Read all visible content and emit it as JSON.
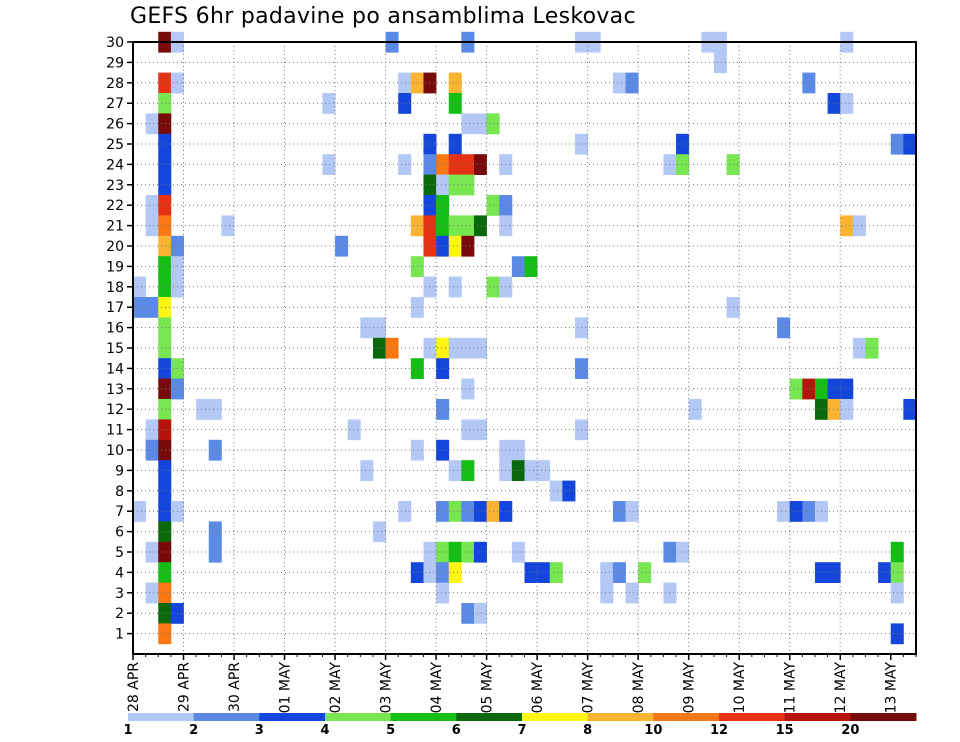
{
  "chart_data": {
    "type": "heatmap",
    "title": "GEFS 6hr padavine po ansamblima Leskovac",
    "xlabel": "",
    "ylabel": "",
    "x_tick_labels": [
      "28 APR",
      "29 APR",
      "30 APR",
      "01 MAY",
      "02 MAY",
      "03 MAY",
      "04 MAY",
      "05 MAY",
      "06 MAY",
      "07 MAY",
      "08 MAY",
      "09 MAY",
      "10 MAY",
      "11 MAY",
      "12 MAY",
      "13 MAY"
    ],
    "x_range_steps": [
      0,
      61
    ],
    "y_tick_labels": [
      "1",
      "2",
      "3",
      "4",
      "5",
      "6",
      "7",
      "8",
      "9",
      "10",
      "11",
      "12",
      "13",
      "14",
      "15",
      "16",
      "17",
      "18",
      "19",
      "20",
      "21",
      "22",
      "23",
      "24",
      "25",
      "26",
      "27",
      "28",
      "29",
      "30"
    ],
    "y_range": [
      0,
      30
    ],
    "grid": true,
    "color_scale": {
      "labels": [
        "1",
        "2",
        "3",
        "4",
        "5",
        "6",
        "7",
        "8",
        "10",
        "12",
        "15",
        "20"
      ],
      "colors": [
        "#b4c8f5",
        "#5a8ae6",
        "#1446dc",
        "#78e650",
        "#14be14",
        "#0a690a",
        "#fff514",
        "#fab432",
        "#fa7814",
        "#e63214",
        "#b4140a",
        "#780a0a"
      ]
    },
    "value_bins": [
      1,
      2,
      3,
      4,
      5,
      6,
      7,
      8,
      10,
      12,
      15,
      20
    ],
    "cells": [
      [
        2,
        30,
        11
      ],
      [
        3,
        30,
        0
      ],
      [
        20,
        30,
        1
      ],
      [
        26,
        30,
        1
      ],
      [
        35,
        30,
        0
      ],
      [
        36,
        30,
        0
      ],
      [
        45,
        30,
        0
      ],
      [
        46,
        30,
        0
      ],
      [
        56,
        30,
        0
      ],
      [
        46,
        29,
        0
      ],
      [
        2,
        28,
        9
      ],
      [
        3,
        28,
        0
      ],
      [
        21,
        28,
        0
      ],
      [
        22,
        28,
        7
      ],
      [
        23,
        28,
        11
      ],
      [
        25,
        28,
        7
      ],
      [
        38,
        28,
        0
      ],
      [
        39,
        28,
        1
      ],
      [
        53,
        28,
        1
      ],
      [
        2,
        27,
        3
      ],
      [
        15,
        27,
        0
      ],
      [
        21,
        27,
        2
      ],
      [
        25,
        27,
        4
      ],
      [
        55,
        27,
        2
      ],
      [
        56,
        27,
        0
      ],
      [
        1,
        26,
        0
      ],
      [
        2,
        26,
        11
      ],
      [
        26,
        26,
        0
      ],
      [
        27,
        26,
        0
      ],
      [
        28,
        26,
        3
      ],
      [
        2,
        25,
        2
      ],
      [
        23,
        25,
        2
      ],
      [
        25,
        25,
        2
      ],
      [
        35,
        25,
        0
      ],
      [
        43,
        25,
        2
      ],
      [
        60,
        25,
        1
      ],
      [
        61,
        25,
        2
      ],
      [
        2,
        24,
        2
      ],
      [
        15,
        24,
        0
      ],
      [
        21,
        24,
        0
      ],
      [
        23,
        24,
        1
      ],
      [
        24,
        24,
        8
      ],
      [
        25,
        24,
        9
      ],
      [
        26,
        24,
        9
      ],
      [
        27,
        24,
        11
      ],
      [
        29,
        24,
        0
      ],
      [
        42,
        24,
        0
      ],
      [
        43,
        24,
        3
      ],
      [
        47,
        24,
        3
      ],
      [
        2,
        23,
        2
      ],
      [
        23,
        23,
        5
      ],
      [
        24,
        23,
        0
      ],
      [
        25,
        23,
        3
      ],
      [
        26,
        23,
        3
      ],
      [
        1,
        22,
        0
      ],
      [
        2,
        22,
        9
      ],
      [
        23,
        22,
        2
      ],
      [
        24,
        22,
        4
      ],
      [
        28,
        22,
        3
      ],
      [
        29,
        22,
        1
      ],
      [
        1,
        21,
        0
      ],
      [
        2,
        21,
        8
      ],
      [
        7,
        21,
        0
      ],
      [
        22,
        21,
        7
      ],
      [
        23,
        21,
        9
      ],
      [
        24,
        21,
        4
      ],
      [
        25,
        21,
        3
      ],
      [
        26,
        21,
        3
      ],
      [
        27,
        21,
        5
      ],
      [
        29,
        21,
        0
      ],
      [
        56,
        21,
        7
      ],
      [
        57,
        21,
        0
      ],
      [
        2,
        20,
        7
      ],
      [
        3,
        20,
        1
      ],
      [
        16,
        20,
        1
      ],
      [
        23,
        20,
        9
      ],
      [
        24,
        20,
        2
      ],
      [
        25,
        20,
        6
      ],
      [
        26,
        20,
        11
      ],
      [
        2,
        19,
        4
      ],
      [
        3,
        19,
        0
      ],
      [
        22,
        19,
        3
      ],
      [
        30,
        19,
        1
      ],
      [
        31,
        19,
        4
      ],
      [
        0,
        18,
        0
      ],
      [
        2,
        18,
        4
      ],
      [
        3,
        18,
        0
      ],
      [
        23,
        18,
        0
      ],
      [
        25,
        18,
        0
      ],
      [
        28,
        18,
        3
      ],
      [
        29,
        18,
        0
      ],
      [
        0,
        17,
        1
      ],
      [
        1,
        17,
        1
      ],
      [
        2,
        17,
        6
      ],
      [
        22,
        17,
        0
      ],
      [
        47,
        17,
        0
      ],
      [
        2,
        16,
        3
      ],
      [
        18,
        16,
        0
      ],
      [
        19,
        16,
        0
      ],
      [
        35,
        16,
        0
      ],
      [
        51,
        16,
        1
      ],
      [
        2,
        15,
        3
      ],
      [
        19,
        15,
        5
      ],
      [
        20,
        15,
        8
      ],
      [
        23,
        15,
        0
      ],
      [
        24,
        15,
        6
      ],
      [
        25,
        15,
        0
      ],
      [
        26,
        15,
        0
      ],
      [
        27,
        15,
        0
      ],
      [
        57,
        15,
        0
      ],
      [
        58,
        15,
        3
      ],
      [
        2,
        14,
        2
      ],
      [
        3,
        14,
        3
      ],
      [
        22,
        14,
        4
      ],
      [
        24,
        14,
        2
      ],
      [
        35,
        14,
        1
      ],
      [
        2,
        13,
        11
      ],
      [
        3,
        13,
        1
      ],
      [
        26,
        13,
        0
      ],
      [
        52,
        13,
        3
      ],
      [
        53,
        13,
        10
      ],
      [
        54,
        13,
        4
      ],
      [
        55,
        13,
        2
      ],
      [
        56,
        13,
        2
      ],
      [
        2,
        12,
        3
      ],
      [
        5,
        12,
        0
      ],
      [
        6,
        12,
        0
      ],
      [
        24,
        12,
        1
      ],
      [
        44,
        12,
        0
      ],
      [
        54,
        12,
        5
      ],
      [
        55,
        12,
        7
      ],
      [
        56,
        12,
        0
      ],
      [
        61,
        12,
        2
      ],
      [
        1,
        11,
        0
      ],
      [
        2,
        11,
        10
      ],
      [
        17,
        11,
        0
      ],
      [
        26,
        11,
        0
      ],
      [
        27,
        11,
        0
      ],
      [
        35,
        11,
        0
      ],
      [
        1,
        10,
        1
      ],
      [
        2,
        10,
        11
      ],
      [
        6,
        10,
        1
      ],
      [
        22,
        10,
        0
      ],
      [
        24,
        10,
        2
      ],
      [
        29,
        10,
        0
      ],
      [
        30,
        10,
        0
      ],
      [
        2,
        9,
        2
      ],
      [
        18,
        9,
        0
      ],
      [
        25,
        9,
        0
      ],
      [
        26,
        9,
        4
      ],
      [
        29,
        9,
        0
      ],
      [
        30,
        9,
        5
      ],
      [
        31,
        9,
        0
      ],
      [
        32,
        9,
        0
      ],
      [
        2,
        8,
        2
      ],
      [
        33,
        8,
        0
      ],
      [
        34,
        8,
        2
      ],
      [
        0,
        7,
        0
      ],
      [
        2,
        7,
        2
      ],
      [
        3,
        7,
        0
      ],
      [
        21,
        7,
        0
      ],
      [
        24,
        7,
        1
      ],
      [
        25,
        7,
        3
      ],
      [
        26,
        7,
        1
      ],
      [
        27,
        7,
        2
      ],
      [
        28,
        7,
        7
      ],
      [
        29,
        7,
        2
      ],
      [
        38,
        7,
        1
      ],
      [
        39,
        7,
        0
      ],
      [
        51,
        7,
        0
      ],
      [
        52,
        7,
        2
      ],
      [
        53,
        7,
        1
      ],
      [
        54,
        7,
        0
      ],
      [
        2,
        6,
        5
      ],
      [
        6,
        6,
        1
      ],
      [
        19,
        6,
        0
      ],
      [
        1,
        5,
        0
      ],
      [
        2,
        5,
        11
      ],
      [
        6,
        5,
        1
      ],
      [
        23,
        5,
        0
      ],
      [
        24,
        5,
        3
      ],
      [
        25,
        5,
        4
      ],
      [
        26,
        5,
        3
      ],
      [
        27,
        5,
        2
      ],
      [
        30,
        5,
        0
      ],
      [
        42,
        5,
        1
      ],
      [
        43,
        5,
        0
      ],
      [
        60,
        5,
        4
      ],
      [
        2,
        4,
        4
      ],
      [
        22,
        4,
        2
      ],
      [
        23,
        4,
        0
      ],
      [
        24,
        4,
        1
      ],
      [
        25,
        4,
        6
      ],
      [
        31,
        4,
        2
      ],
      [
        32,
        4,
        2
      ],
      [
        33,
        4,
        3
      ],
      [
        37,
        4,
        0
      ],
      [
        38,
        4,
        1
      ],
      [
        40,
        4,
        3
      ],
      [
        54,
        4,
        2
      ],
      [
        55,
        4,
        2
      ],
      [
        59,
        4,
        2
      ],
      [
        60,
        4,
        3
      ],
      [
        1,
        3,
        0
      ],
      [
        2,
        3,
        8
      ],
      [
        24,
        3,
        0
      ],
      [
        37,
        3,
        0
      ],
      [
        39,
        3,
        0
      ],
      [
        42,
        3,
        0
      ],
      [
        60,
        3,
        0
      ],
      [
        2,
        2,
        5
      ],
      [
        3,
        2,
        2
      ],
      [
        26,
        2,
        1
      ],
      [
        27,
        2,
        0
      ],
      [
        2,
        1,
        8
      ],
      [
        60,
        1,
        2
      ]
    ]
  }
}
